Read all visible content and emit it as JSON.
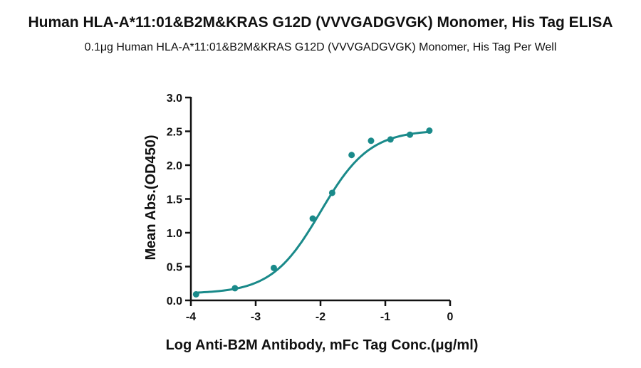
{
  "chart_data": {
    "type": "scatter",
    "title": "Human HLA-A*11:01&B2M&KRAS G12D (VVVGADGVGK) Monomer, His Tag ELISA",
    "subtitle": "0.1μg Human HLA-A*11:01&B2M&KRAS G12D (VVVGADGVGK) Monomer, His Tag Per Well",
    "xlabel": "Log Anti-B2M Antibody, mFc Tag Conc.(μg/ml)",
    "ylabel": "Mean Abs.(OD450)",
    "xlim": [
      -4,
      0
    ],
    "ylim": [
      0,
      3.0
    ],
    "xticks": [
      "-4",
      "-3",
      "-2",
      "-1",
      "0"
    ],
    "yticks": [
      "0.0",
      "0.5",
      "1.0",
      "1.5",
      "2.0",
      "2.5",
      "3.0"
    ],
    "grid": false,
    "color": "#1a8a8a",
    "series": [
      {
        "points": [
          {
            "x": -3.92,
            "y": 0.09
          },
          {
            "x": -3.32,
            "y": 0.18
          },
          {
            "x": -2.72,
            "y": 0.48
          },
          {
            "x": -2.12,
            "y": 1.21
          },
          {
            "x": -1.82,
            "y": 1.59
          },
          {
            "x": -1.52,
            "y": 2.15
          },
          {
            "x": -1.22,
            "y": 2.36
          },
          {
            "x": -0.92,
            "y": 2.38
          },
          {
            "x": -0.62,
            "y": 2.45
          },
          {
            "x": -0.32,
            "y": 2.51
          }
        ]
      }
    ],
    "fit_curve": {
      "model": "4PL",
      "bottom": 0.1,
      "top": 2.52,
      "logEC50": -2.0,
      "hill": 1.15
    }
  }
}
